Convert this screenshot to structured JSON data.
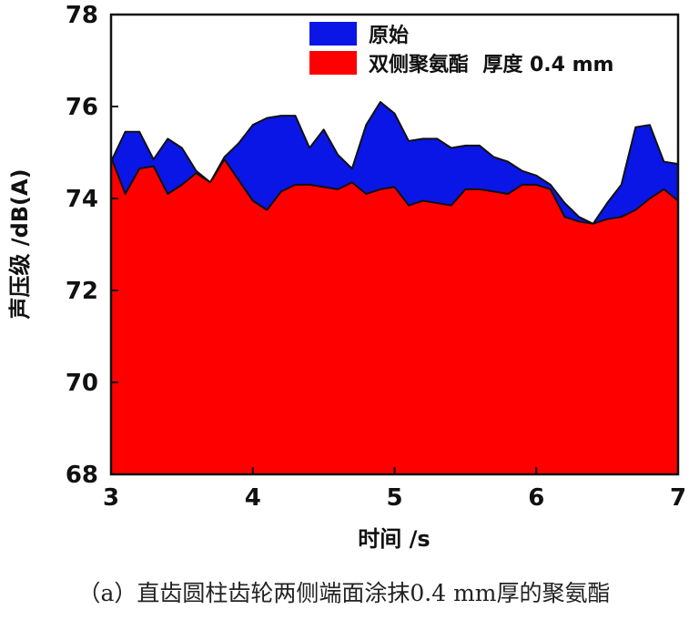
{
  "chart_data": {
    "type": "area",
    "title": "",
    "xlabel": "时间 /s",
    "ylabel": "声压级 /dB(A)",
    "xlim": [
      3,
      7
    ],
    "ylim": [
      68,
      78
    ],
    "xticks": [
      "3",
      "4",
      "5",
      "6",
      "7"
    ],
    "yticks": [
      "68",
      "70",
      "72",
      "74",
      "76",
      "78"
    ],
    "grid": false,
    "legend_position": "top-center",
    "series": [
      {
        "name": "原始",
        "color": "#0A16E6",
        "x": [
          3.0,
          3.1,
          3.2,
          3.3,
          3.4,
          3.5,
          3.6,
          3.7,
          3.8,
          3.9,
          4.0,
          4.1,
          4.2,
          4.3,
          4.4,
          4.5,
          4.6,
          4.7,
          4.8,
          4.9,
          5.0,
          5.1,
          5.2,
          5.3,
          5.4,
          5.5,
          5.6,
          5.7,
          5.8,
          5.9,
          6.0,
          6.1,
          6.2,
          6.3,
          6.4,
          6.5,
          6.6,
          6.7,
          6.8,
          6.9,
          7.0
        ],
        "values": [
          74.8,
          75.45,
          75.45,
          74.85,
          75.3,
          75.1,
          74.6,
          74.35,
          74.9,
          75.2,
          75.6,
          75.75,
          75.8,
          75.8,
          75.1,
          75.5,
          74.95,
          74.65,
          75.6,
          76.1,
          75.85,
          75.25,
          75.3,
          75.3,
          75.1,
          75.15,
          75.15,
          74.9,
          74.8,
          74.6,
          74.5,
          74.3,
          73.9,
          73.6,
          73.45,
          73.9,
          74.3,
          75.55,
          75.6,
          74.8,
          74.75
        ]
      },
      {
        "name": "双侧聚氨酯  厚度 0.4 mm",
        "color": "#FF0000",
        "x": [
          3.0,
          3.1,
          3.2,
          3.3,
          3.4,
          3.5,
          3.6,
          3.7,
          3.8,
          3.9,
          4.0,
          4.1,
          4.2,
          4.3,
          4.4,
          4.5,
          4.6,
          4.7,
          4.8,
          4.9,
          5.0,
          5.1,
          5.2,
          5.3,
          5.4,
          5.5,
          5.6,
          5.7,
          5.8,
          5.9,
          6.0,
          6.1,
          6.2,
          6.3,
          6.4,
          6.5,
          6.6,
          6.7,
          6.8,
          6.9,
          7.0
        ],
        "values": [
          74.9,
          74.1,
          74.65,
          74.7,
          74.1,
          74.3,
          74.55,
          74.35,
          74.85,
          74.4,
          73.95,
          73.75,
          74.15,
          74.3,
          74.3,
          74.25,
          74.2,
          74.35,
          74.1,
          74.2,
          74.25,
          73.85,
          73.95,
          73.9,
          73.85,
          74.2,
          74.2,
          74.15,
          74.1,
          74.3,
          74.3,
          74.2,
          73.6,
          73.5,
          73.45,
          73.55,
          73.6,
          73.75,
          74.0,
          74.2,
          73.95
        ]
      }
    ]
  },
  "caption": "（a）直齿圆柱齿轮两侧端面涂抹0.4 mm厚的聚氨酯"
}
